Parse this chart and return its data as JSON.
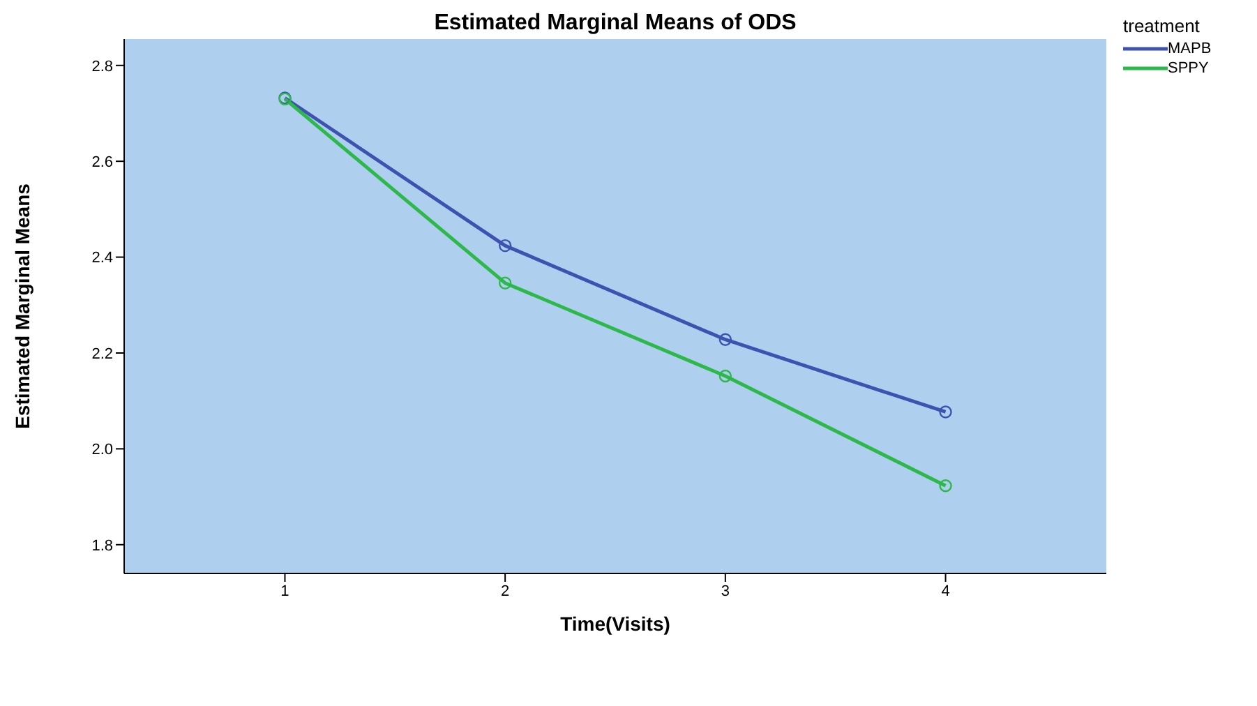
{
  "chart_data": {
    "type": "line",
    "title": "Estimated Marginal Means of ODS",
    "xlabel": "Time(Visits)",
    "ylabel": "Estimated Marginal Means",
    "legend_title": "treatment",
    "x": [
      1,
      2,
      3,
      4
    ],
    "series": [
      {
        "name": "MAPB",
        "color": "#3e53b0",
        "values": [
          2.732,
          2.424,
          2.228,
          2.077
        ]
      },
      {
        "name": "SPPY",
        "color": "#2db84a",
        "values": [
          2.73,
          2.346,
          2.152,
          1.923
        ]
      }
    ],
    "xlim": [
      0.27,
      4.73
    ],
    "xticks": [
      1,
      2,
      3,
      4
    ],
    "ylim": [
      1.74,
      2.855
    ],
    "yticks": [
      1.8,
      2.2,
      2.4,
      2.6,
      2.8,
      {
        "value": 2,
        "label": "2.0"
      }
    ],
    "grid": false,
    "legend": "top right",
    "marker": "circle",
    "line_style": "solid"
  }
}
